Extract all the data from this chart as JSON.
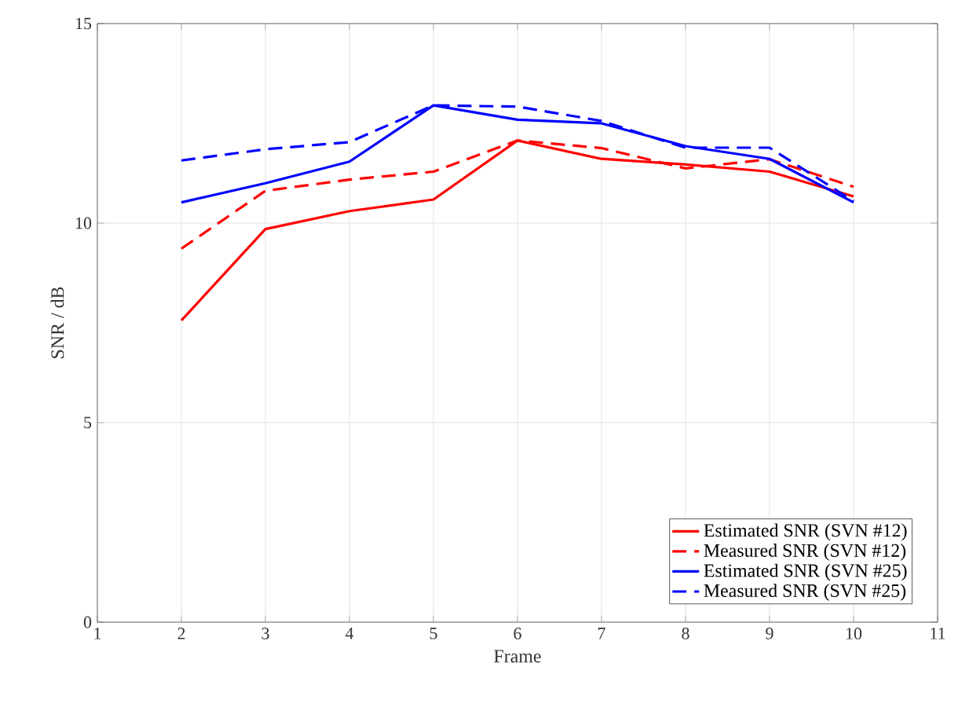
{
  "chart_data": {
    "type": "line",
    "xlabel": "Frame",
    "ylabel": "SNR / dB",
    "x": [
      2,
      3,
      4,
      5,
      6,
      7,
      8,
      9,
      10
    ],
    "series": [
      {
        "name": "Estimated SNR (SVN #12)",
        "color": "#ff0000",
        "line_style": "solid",
        "values": [
          7.56,
          9.85,
          10.3,
          10.59,
          12.07,
          11.61,
          11.47,
          11.29,
          10.67
        ]
      },
      {
        "name": "Measured SNR (SVN #12)",
        "color": "#ff0000",
        "line_style": "dashed",
        "values": [
          9.36,
          10.81,
          11.09,
          11.29,
          12.07,
          11.88,
          11.37,
          11.6,
          10.91
        ]
      },
      {
        "name": "Estimated SNR (SVN #25)",
        "color": "#0000ff",
        "line_style": "solid",
        "values": [
          10.52,
          11.0,
          11.54,
          12.95,
          12.59,
          12.5,
          11.93,
          11.61,
          10.52
        ]
      },
      {
        "name": "Measured SNR (SVN #25)",
        "color": "#0000ff",
        "line_style": "dashed",
        "values": [
          11.57,
          11.85,
          12.03,
          12.95,
          12.92,
          12.56,
          11.89,
          11.89,
          10.55
        ]
      }
    ],
    "xlim": [
      1,
      11
    ],
    "ylim": [
      0,
      15
    ],
    "xticks": [
      1,
      2,
      3,
      4,
      5,
      6,
      7,
      8,
      9,
      10,
      11
    ],
    "yticks": [
      0,
      5,
      10,
      15
    ],
    "grid": true,
    "legend": "bottom right",
    "marker": "none"
  }
}
